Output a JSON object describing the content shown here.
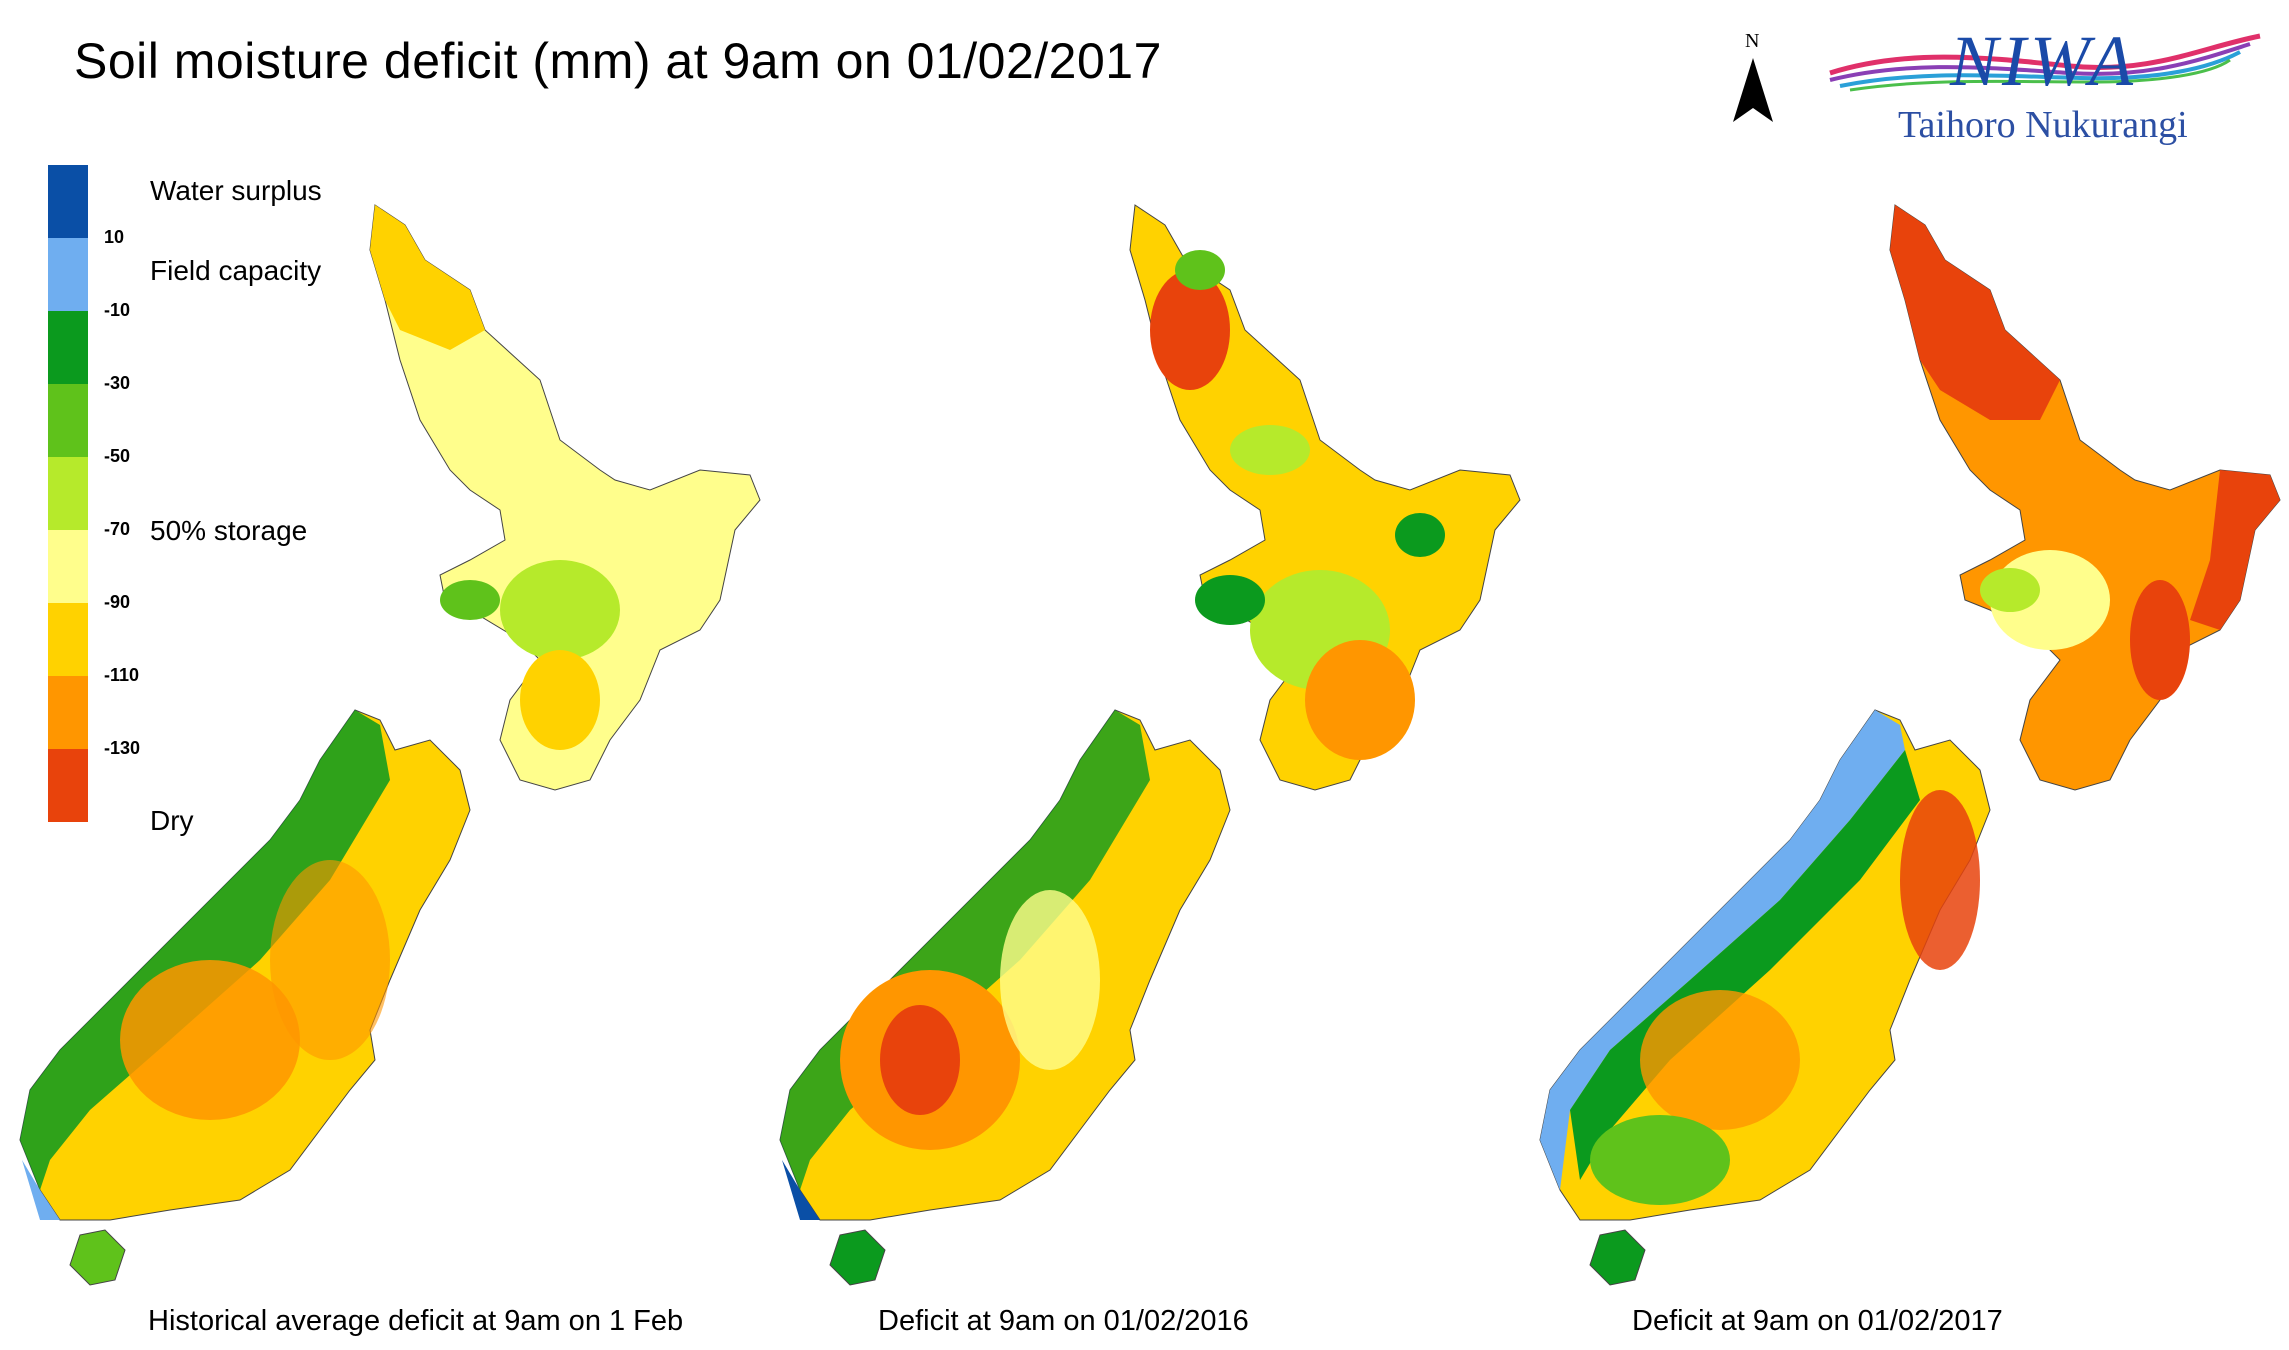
{
  "title": "Soil moisture deficit (mm) at  9am on 01/02/2017",
  "north_label": "N",
  "logo": {
    "name": "NIWA",
    "subtitle": "Taihoro Nukurangi"
  },
  "legend": {
    "colors": [
      "#0a4fa6",
      "#6faef0",
      "#0b9a1e",
      "#5fc21b",
      "#b6ea2b",
      "#fffe8c",
      "#ffd200",
      "#ff9600",
      "#e8430c"
    ],
    "ticks": [
      "10",
      "-10",
      "-30",
      "-50",
      "-70",
      "-90",
      "-110",
      "-130"
    ],
    "labels": {
      "water_surplus": "Water surplus",
      "field_capacity": "Field capacity",
      "storage": "50% storage",
      "dry": "Dry"
    }
  },
  "panels": [
    {
      "caption": "Historical average deficit at  9am on 1 Feb",
      "dominant": "#ffd200",
      "accent": "#5fc21b"
    },
    {
      "caption": "Deficit at  9am on 01/02/2016",
      "dominant": "#ffd200",
      "accent": "#e8430c"
    },
    {
      "caption": "Deficit at  9am on 01/02/2017",
      "dominant": "#ff9600",
      "accent": "#e8430c"
    }
  ]
}
